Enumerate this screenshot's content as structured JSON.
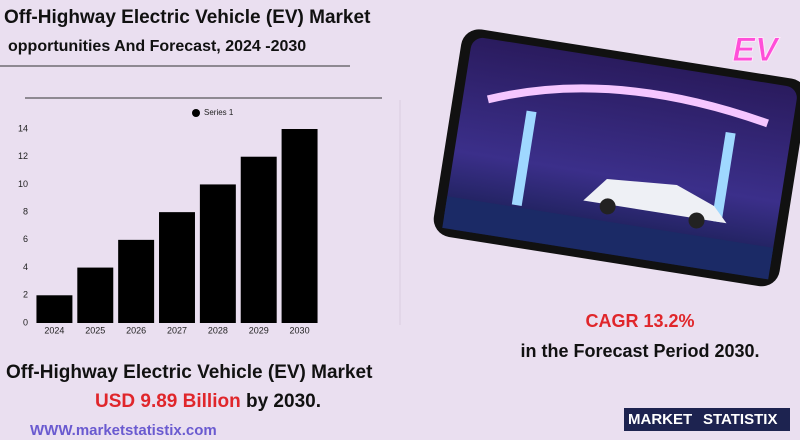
{
  "header": {
    "title": "Off-Highway Electric Vehicle (EV) Market",
    "subtitle": "opportunities And Forecast, 2024 -2030"
  },
  "chart_data": {
    "type": "bar",
    "categories": [
      "2024",
      "2025",
      "2026",
      "2027",
      "2028",
      "2029",
      "2030"
    ],
    "series": [
      {
        "name": "Series 1",
        "color": "#000000",
        "values": [
          2,
          4,
          6,
          8,
          10,
          12,
          14
        ]
      }
    ],
    "ylim": [
      0,
      14
    ],
    "yticks": [
      0,
      2,
      4,
      6,
      8,
      10,
      12,
      14
    ],
    "grid": false,
    "legend": "top"
  },
  "cagr": {
    "label": "CAGR  13.2%",
    "period": "in the  Forecast Period  2030."
  },
  "market": {
    "title": "Off-Highway Electric Vehicle (EV) Market",
    "value": "USD 9.89 Billion",
    "suffix": " by 2030."
  },
  "website": "WWW.marketstatistix.com",
  "logo": {
    "left": "MARKET",
    "right": "STATISTIX"
  },
  "image_sign": "EV"
}
